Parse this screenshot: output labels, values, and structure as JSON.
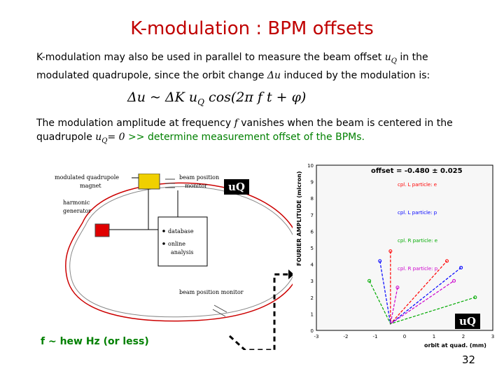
{
  "title": "K-modulation : BPM offsets",
  "paragraph1": {
    "line1_a": "K-modulation may also be used in parallel to measure the beam offset",
    "line1_sym": "u",
    "line1_sub": "Q",
    "line1_b": "in the",
    "line2_a": "modulated quadrupole, since the orbit change",
    "line2_sym": "Δu",
    "line2_b": "induced by the modulation is:"
  },
  "formula": "Δu ~ ΔK u",
  "formula_sub": "Q",
  "formula_tail": "cos(2π f t + φ)",
  "paragraph2": {
    "line1_a": "The modulation amplitude at frequency",
    "line1_sym": "f",
    "line1_b": "vanishes when the beam is centered in the",
    "line2_a": "quadrupole",
    "line2_sym": "u",
    "line2_sub": "Q",
    "line2_eq": "= 0",
    "line2_green": ">> determine measurement offset of the BPMs."
  },
  "schematic": {
    "quad_label_1": "modulated quadrupole",
    "quad_label_2": "magnet",
    "bpm_label_1": "beam position",
    "bpm_label_2": "monitor",
    "harmonic_1": "harmonic",
    "harmonic_2": "generator",
    "bullets": [
      "database",
      "online",
      "analysis"
    ],
    "bottom_bpm": "beam position monitor"
  },
  "plot": {
    "ylabel": "FOURIER AMPLITUDE (micron)",
    "xlabel": "orbit at quad. (mm)",
    "offset_label": "offset = -0.480 ± 0.025",
    "yticks": [
      "10",
      "9",
      "8",
      "7",
      "6",
      "5",
      "4",
      "3",
      "2",
      "1",
      "0"
    ],
    "xticks": [
      "-3",
      "-2",
      "-1",
      "0",
      "1",
      "2",
      "3"
    ],
    "legend": [
      "cpl. L particle: e",
      "cpl. L particle: p",
      "cpl. R particle: e",
      "cpl. R particle: p"
    ],
    "series_colors": [
      "#ff0000",
      "#0000ff",
      "#00aa00",
      "#cc00cc"
    ]
  },
  "uq_box_1": "uQ",
  "uq_box_2": "uQ",
  "footnote": "f ~ hew Hz (or less)",
  "page_number": "32"
}
